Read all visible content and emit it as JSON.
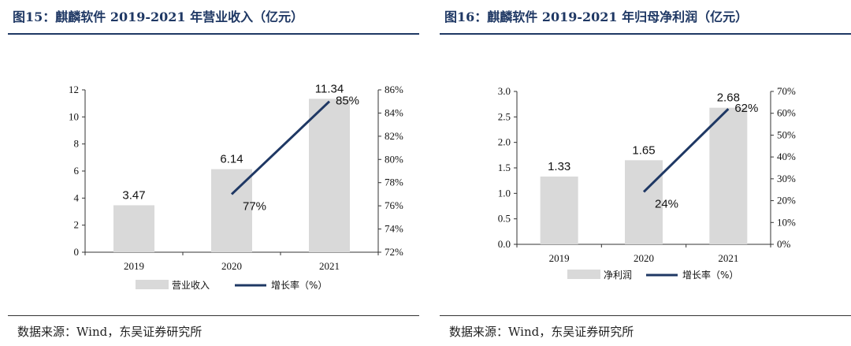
{
  "left": {
    "title": "图15：麒麟软件 2019-2021 年营业收入（亿元）",
    "source": "数据来源：Wind，东吴证券研究所"
  },
  "right": {
    "title": "图16：麒麟软件 2019-2021 年归母净利润（亿元）",
    "source": "数据来源：Wind，东吴证券研究所"
  },
  "colors": {
    "bar": "#d9d9d9",
    "line": "#1f3864",
    "title": "#1f3864"
  },
  "chart_data": [
    {
      "type": "bar",
      "categories": [
        "2019",
        "2020",
        "2021"
      ],
      "series": [
        {
          "name": "营业收入",
          "type": "bar",
          "axis": "left",
          "values": [
            3.47,
            6.14,
            11.34
          ],
          "labels": [
            "3.47",
            "6.14",
            "11.34"
          ]
        },
        {
          "name": "增长率（%）",
          "type": "line",
          "axis": "right",
          "values": [
            null,
            77,
            85
          ],
          "labels": [
            "",
            "77%",
            "85%"
          ]
        }
      ],
      "yleft": {
        "min": 0,
        "max": 12,
        "ticks": [
          0,
          2,
          4,
          6,
          8,
          10,
          12
        ],
        "tick_labels": [
          "0",
          "2",
          "4",
          "6",
          "8",
          "10",
          "12"
        ]
      },
      "yright": {
        "min": 72,
        "max": 86,
        "ticks": [
          72,
          74,
          76,
          78,
          80,
          82,
          84,
          86
        ],
        "tick_labels": [
          "72%",
          "74%",
          "76%",
          "78%",
          "80%",
          "82%",
          "84%",
          "86%"
        ]
      },
      "legend_position": "bottom"
    },
    {
      "type": "bar",
      "categories": [
        "2019",
        "2020",
        "2021"
      ],
      "series": [
        {
          "name": "净利润",
          "type": "bar",
          "axis": "left",
          "values": [
            1.33,
            1.65,
            2.68
          ],
          "labels": [
            "1.33",
            "1.65",
            "2.68"
          ]
        },
        {
          "name": "增长率（%）",
          "type": "line",
          "axis": "right",
          "values": [
            null,
            24,
            62
          ],
          "labels": [
            "",
            "24%",
            "62%"
          ]
        }
      ],
      "yleft": {
        "min": 0,
        "max": 3,
        "ticks": [
          0,
          0.5,
          1,
          1.5,
          2,
          2.5,
          3
        ],
        "tick_labels": [
          "0.0",
          "0.5",
          "1.0",
          "1.5",
          "2.0",
          "2.5",
          "3.0"
        ]
      },
      "yright": {
        "min": 0,
        "max": 70,
        "ticks": [
          0,
          10,
          20,
          30,
          40,
          50,
          60,
          70
        ],
        "tick_labels": [
          "0%",
          "10%",
          "20%",
          "30%",
          "40%",
          "50%",
          "60%",
          "70%"
        ]
      },
      "legend_position": "bottom"
    }
  ]
}
